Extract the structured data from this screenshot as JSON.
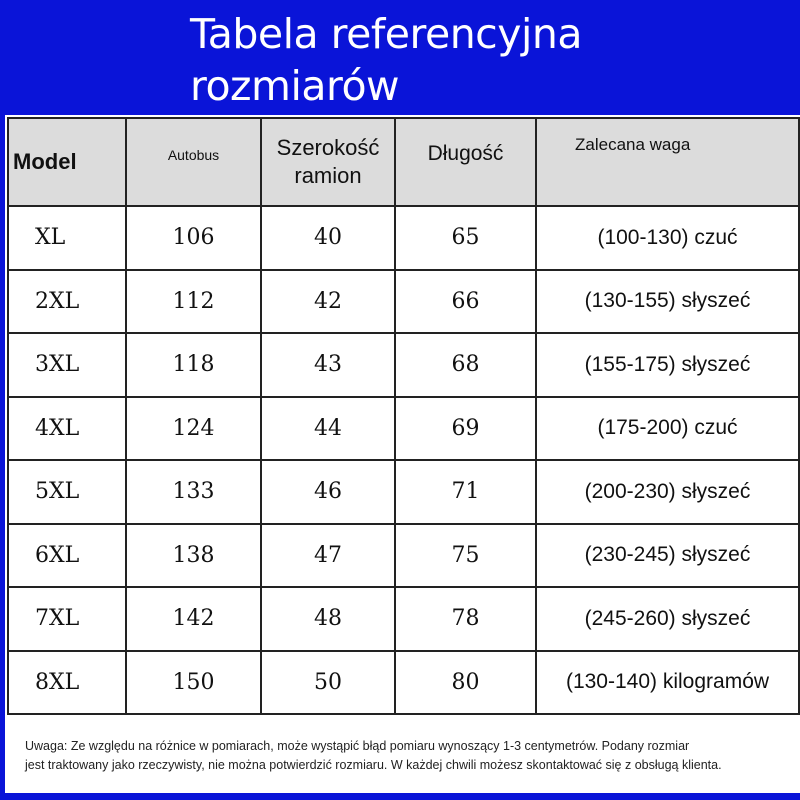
{
  "title": [
    "Tabela referencyjna",
    "rozmiarów"
  ],
  "headers": [
    "Model",
    "Autobus",
    "Szerokość ramion",
    "Długość",
    "Zalecana waga"
  ],
  "rows": [
    [
      "XL",
      "106",
      "40",
      "65",
      "(100-130) czuć"
    ],
    [
      "2XL",
      "112",
      "42",
      "66",
      "(130-155) słyszeć"
    ],
    [
      "3XL",
      "118",
      "43",
      "68",
      "(155-175) słyszeć"
    ],
    [
      "4XL",
      "124",
      "44",
      "69",
      "(175-200) czuć"
    ],
    [
      "5XL",
      "133",
      "46",
      "71",
      "(200-230) słyszeć"
    ],
    [
      "6XL",
      "138",
      "47",
      "75",
      "(230-245) słyszeć"
    ],
    [
      "7XL",
      "142",
      "48",
      "78",
      "(245-260) słyszeć"
    ],
    [
      "8XL",
      "150",
      "50",
      "80",
      "(130-140) kilogramów"
    ]
  ],
  "note": [
    "Uwaga: Ze względu na różnice w pomiarach, może wystąpić błąd pomiaru wynoszący 1-3 centymetrów. Podany rozmiar",
    "jest traktowany jako rzeczywisty, nie można potwierdzić rozmiaru. W każdej chwili możesz skontaktować się z obsługą klienta."
  ],
  "colors": {
    "frame": "#0a14d8",
    "header_bg": "#dcdcdc"
  }
}
